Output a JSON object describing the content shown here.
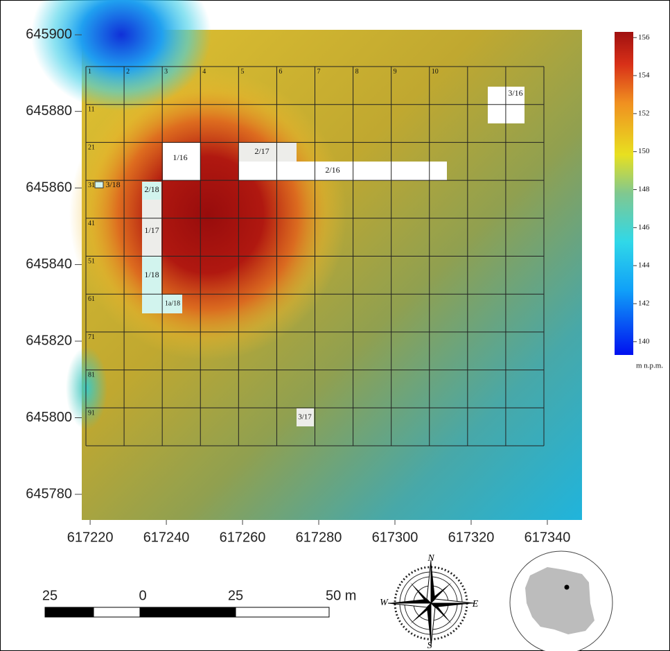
{
  "axes": {
    "xlim": [
      617217.8,
      617349.1
    ],
    "ylim": [
      645773.3,
      645901.3
    ],
    "xticks": [
      617220,
      617240,
      617260,
      617280,
      617300,
      617320,
      617340
    ],
    "yticks": [
      645900,
      645880,
      645860,
      645840,
      645820,
      645800,
      645780
    ]
  },
  "grid_labels": {
    "columns": [
      "1",
      "2",
      "3",
      "4",
      "5",
      "6",
      "7",
      "8",
      "9",
      "10"
    ],
    "rows": [
      "11",
      "21",
      "31",
      "41",
      "51",
      "61",
      "71",
      "81",
      "91"
    ]
  },
  "trenches": [
    "3/16",
    "1/16",
    "2/17",
    "2/16",
    "3/18",
    "2/18",
    "1/17",
    "1/18",
    "1a/18",
    "3/17"
  ],
  "colorbar": {
    "clim": [
      139.3,
      156.3
    ],
    "ticks": [
      156,
      154,
      152,
      150,
      148,
      146,
      144,
      142,
      140
    ],
    "unit": "m n.p.m."
  },
  "scale_bar": {
    "labels": [
      "25",
      "0",
      "25",
      "50 m"
    ]
  },
  "compass": {
    "north": "N",
    "east": "E",
    "south": "S",
    "west": "W"
  }
}
